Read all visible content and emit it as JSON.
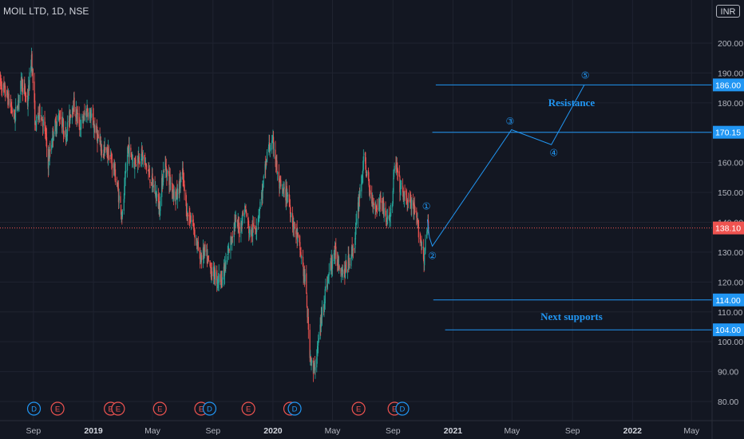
{
  "symbol": {
    "title": "MOIL LTD, 1D, NSE"
  },
  "currency": "INR",
  "colors": {
    "background": "#131722",
    "grid": "#1f2330",
    "up": "#26a69a",
    "down": "#ef5350",
    "annotation": "#2196f3",
    "price_line": "#ef5350",
    "text": "#b2b5be"
  },
  "chart_data": {
    "type": "candlestick",
    "ylim": [
      77,
      212
    ],
    "y_ticks": [
      80,
      90,
      100,
      110,
      120,
      130,
      140,
      150,
      160,
      170,
      180,
      190,
      200
    ],
    "x_ticks": [
      {
        "label": "Sep",
        "bold": false,
        "x": "2018-09-01"
      },
      {
        "label": "2019",
        "bold": true,
        "x": "2019-01-01"
      },
      {
        "label": "May",
        "bold": false,
        "x": "2019-05-01"
      },
      {
        "label": "Sep",
        "bold": false,
        "x": "2019-09-01"
      },
      {
        "label": "2020",
        "bold": true,
        "x": "2020-01-01"
      },
      {
        "label": "May",
        "bold": false,
        "x": "2020-05-01"
      },
      {
        "label": "Sep",
        "bold": false,
        "x": "2020-09-01"
      },
      {
        "label": "2021",
        "bold": true,
        "x": "2021-01-01"
      },
      {
        "label": "May",
        "bold": false,
        "x": "2021-05-01"
      },
      {
        "label": "Sep",
        "bold": false,
        "x": "2021-09-01"
      },
      {
        "label": "2022",
        "bold": true,
        "x": "2022-01-01"
      },
      {
        "label": "May",
        "bold": false,
        "x": "2022-05-01"
      }
    ],
    "price_path": [
      [
        "2018-06-25",
        187
      ],
      [
        "2018-07-10",
        182
      ],
      [
        "2018-07-25",
        175
      ],
      [
        "2018-08-08",
        187
      ],
      [
        "2018-08-20",
        180
      ],
      [
        "2018-08-28",
        196
      ],
      [
        "2018-09-05",
        172
      ],
      [
        "2018-09-15",
        178
      ],
      [
        "2018-09-25",
        170
      ],
      [
        "2018-10-01",
        160
      ],
      [
        "2018-10-12",
        171
      ],
      [
        "2018-10-25",
        176
      ],
      [
        "2018-11-05",
        169
      ],
      [
        "2018-11-20",
        180
      ],
      [
        "2018-12-05",
        172
      ],
      [
        "2018-12-20",
        178
      ],
      [
        "2019-01-05",
        171
      ],
      [
        "2019-01-18",
        164
      ],
      [
        "2019-02-01",
        163
      ],
      [
        "2019-02-12",
        158
      ],
      [
        "2019-02-20",
        150
      ],
      [
        "2019-03-01",
        142
      ],
      [
        "2019-03-12",
        165
      ],
      [
        "2019-03-25",
        160
      ],
      [
        "2019-04-08",
        163
      ],
      [
        "2019-04-20",
        158
      ],
      [
        "2019-05-05",
        151
      ],
      [
        "2019-05-15",
        145
      ],
      [
        "2019-05-25",
        160
      ],
      [
        "2019-06-05",
        154
      ],
      [
        "2019-06-18",
        148
      ],
      [
        "2019-07-01",
        156
      ],
      [
        "2019-07-10",
        143
      ],
      [
        "2019-07-22",
        140
      ],
      [
        "2019-08-05",
        128
      ],
      [
        "2019-08-15",
        130
      ],
      [
        "2019-08-28",
        124
      ],
      [
        "2019-09-10",
        121
      ],
      [
        "2019-09-22",
        122
      ],
      [
        "2019-10-05",
        132
      ],
      [
        "2019-10-15",
        140
      ],
      [
        "2019-10-25",
        138
      ],
      [
        "2019-11-05",
        145
      ],
      [
        "2019-11-15",
        136
      ],
      [
        "2019-11-28",
        139
      ],
      [
        "2019-12-10",
        150
      ],
      [
        "2019-12-22",
        165
      ],
      [
        "2020-01-03",
        166
      ],
      [
        "2020-01-12",
        153
      ],
      [
        "2020-01-20",
        150
      ],
      [
        "2020-02-01",
        149
      ],
      [
        "2020-02-10",
        140
      ],
      [
        "2020-02-18",
        136
      ],
      [
        "2020-02-28",
        128
      ],
      [
        "2020-03-08",
        118
      ],
      [
        "2020-03-15",
        98
      ],
      [
        "2020-03-23",
        89
      ],
      [
        "2020-04-01",
        98
      ],
      [
        "2020-04-12",
        113
      ],
      [
        "2020-04-25",
        124
      ],
      [
        "2020-05-05",
        130
      ],
      [
        "2020-05-15",
        126
      ],
      [
        "2020-05-25",
        123
      ],
      [
        "2020-06-05",
        128
      ],
      [
        "2020-06-15",
        133
      ],
      [
        "2020-06-25",
        150
      ],
      [
        "2020-07-05",
        162
      ],
      [
        "2020-07-15",
        150
      ],
      [
        "2020-07-28",
        145
      ],
      [
        "2020-08-08",
        148
      ],
      [
        "2020-08-20",
        140
      ],
      [
        "2020-08-30",
        145
      ],
      [
        "2020-09-05",
        161
      ],
      [
        "2020-09-15",
        152
      ],
      [
        "2020-09-25",
        148
      ],
      [
        "2020-10-08",
        146
      ],
      [
        "2020-10-18",
        141
      ],
      [
        "2020-10-25",
        136
      ],
      [
        "2020-11-03",
        128
      ],
      [
        "2020-11-10",
        138
      ]
    ],
    "candles_end": "2020-11-12",
    "last_price": 138.1,
    "price_labels": [
      {
        "value": 186.0,
        "text": "186.00"
      },
      {
        "value": 170.15,
        "text": "170.15"
      },
      {
        "value": 138.1,
        "text": "138.10",
        "kind": "last"
      },
      {
        "value": 114.0,
        "text": "114.00"
      },
      {
        "value": 104.0,
        "text": "104.00"
      }
    ],
    "levels": [
      {
        "name": "resistance-186",
        "value": 186.0,
        "from": "2020-11-27",
        "to": "2022-07-20"
      },
      {
        "name": "resistance-170",
        "value": 170.15,
        "from": "2020-11-20",
        "to": "2022-07-20"
      },
      {
        "name": "support-114",
        "value": 114.0,
        "from": "2020-11-22",
        "to": "2022-07-20"
      },
      {
        "name": "support-104",
        "value": 104.0,
        "from": "2020-12-16",
        "to": "2022-07-20"
      }
    ],
    "wave_path": [
      [
        "2020-11-10",
        141
      ],
      [
        "2020-11-14",
        135
      ],
      [
        "2020-11-20",
        132
      ],
      [
        "2021-04-30",
        171
      ],
      [
        "2021-07-20",
        166
      ],
      [
        "2021-09-25",
        186
      ]
    ],
    "wave_labels": [
      {
        "text": "①",
        "x": "2020-11-08",
        "y": 145.3
      },
      {
        "text": "②",
        "x": "2020-11-20",
        "y": 128.8
      },
      {
        "text": "③",
        "x": "2021-04-27",
        "y": 173.8
      },
      {
        "text": "④",
        "x": "2021-07-25",
        "y": 163.3
      },
      {
        "text": "⑤",
        "x": "2021-09-27",
        "y": 189.2
      }
    ],
    "annotations": [
      {
        "name": "resistance",
        "text": "Resistance",
        "x": "2021-08-30",
        "y": 180.2
      },
      {
        "name": "next-supports",
        "text": "Next supports",
        "x": "2021-08-30",
        "y": 108.6
      }
    ],
    "events": [
      {
        "text": "D",
        "x": "2018-09-02",
        "kind": "dividend"
      },
      {
        "text": "E",
        "x": "2018-10-20",
        "kind": "earnings"
      },
      {
        "text": "E",
        "x": "2019-02-05",
        "kind": "earnings"
      },
      {
        "text": "E",
        "x": "2019-02-20",
        "kind": "earnings"
      },
      {
        "text": "E",
        "x": "2019-05-16",
        "kind": "earnings"
      },
      {
        "text": "E",
        "x": "2019-08-08",
        "kind": "earnings"
      },
      {
        "text": "D",
        "x": "2019-08-25",
        "kind": "dividend"
      },
      {
        "text": "E",
        "x": "2019-11-12",
        "kind": "earnings"
      },
      {
        "text": "E",
        "x": "2020-02-05",
        "kind": "earnings"
      },
      {
        "text": "D",
        "x": "2020-02-14",
        "kind": "dividend"
      },
      {
        "text": "E",
        "x": "2020-06-23",
        "kind": "earnings"
      },
      {
        "text": "E",
        "x": "2020-09-04",
        "kind": "earnings"
      },
      {
        "text": "D",
        "x": "2020-09-20",
        "kind": "dividend"
      }
    ]
  }
}
